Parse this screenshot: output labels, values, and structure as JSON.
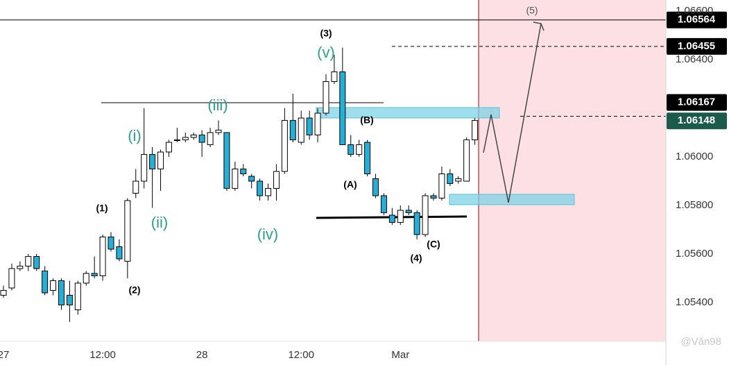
{
  "chart_data": {
    "type": "candlestick",
    "x": [
      0,
      1,
      2,
      3,
      4,
      5,
      6,
      7,
      8,
      9,
      10,
      11,
      12,
      13,
      14,
      15,
      16,
      17,
      18,
      19,
      20,
      21,
      22,
      23,
      24,
      25,
      26,
      27,
      28,
      29,
      30,
      31,
      32,
      33,
      34,
      35,
      36,
      37,
      38,
      39,
      40,
      41,
      42,
      43,
      44,
      45,
      46,
      47,
      48,
      49,
      50,
      51,
      52,
      53,
      54,
      55,
      56,
      57
    ],
    "open": [
      1.0543,
      1.0546,
      1.0554,
      1.0555,
      1.0559,
      1.0553,
      1.0545,
      1.0549,
      1.0543,
      1.0537,
      1.0548,
      1.0552,
      1.0551,
      1.0567,
      1.0563,
      1.0557,
      1.0585,
      1.059,
      1.0601,
      1.0595,
      1.0602,
      1.0607,
      1.0607,
      1.0608,
      1.0609,
      1.0605,
      1.061,
      1.061,
      1.0587,
      1.0595,
      1.0592,
      1.059,
      1.0584,
      1.0587,
      1.0594,
      1.0615,
      1.0606,
      1.0616,
      1.0609,
      1.0618,
      1.0631,
      1.0635,
      1.0605,
      1.0601,
      1.0606,
      1.0591,
      1.0584,
      1.0576,
      1.0573,
      1.0578,
      1.0577,
      1.0568,
      1.0584,
      1.0583,
      1.0593,
      1.059,
      1.059,
      1.0607
    ],
    "high": [
      1.0547,
      1.0556,
      1.0557,
      1.056,
      1.056,
      1.0555,
      1.055,
      1.055,
      1.0549,
      1.0549,
      1.0553,
      1.0559,
      1.0568,
      1.0569,
      1.0566,
      1.0583,
      1.0595,
      1.062,
      1.0604,
      1.0603,
      1.0607,
      1.0612,
      1.061,
      1.061,
      1.0611,
      1.0612,
      1.0615,
      1.061,
      1.0598,
      1.0597,
      1.0593,
      1.0591,
      1.0589,
      1.0597,
      1.062,
      1.0626,
      1.0619,
      1.0619,
      1.062,
      1.0634,
      1.0642,
      1.0645,
      1.0609,
      1.0607,
      1.0607,
      1.0593,
      1.0585,
      1.0579,
      1.058,
      1.058,
      1.0578,
      1.0585,
      1.0585,
      1.0596,
      1.0595,
      1.0592,
      1.0608,
      1.0616
    ],
    "low": [
      1.0542,
      1.0545,
      1.0553,
      1.0553,
      1.0553,
      1.0543,
      1.0543,
      1.0537,
      1.0532,
      1.0535,
      1.0547,
      1.055,
      1.0549,
      1.0561,
      1.0557,
      1.055,
      1.0583,
      1.0587,
      1.0579,
      1.0586,
      1.06,
      1.0606,
      1.0606,
      1.0607,
      1.06,
      1.0604,
      1.0609,
      1.0586,
      1.0586,
      1.0592,
      1.0587,
      1.0582,
      1.0582,
      1.0582,
      1.0593,
      1.0606,
      1.0605,
      1.0607,
      1.0606,
      1.0617,
      1.063,
      1.0605,
      1.06,
      1.06,
      1.0592,
      1.0583,
      1.0576,
      1.0572,
      1.0572,
      1.0576,
      1.0566,
      1.0567,
      1.0582,
      1.0582,
      1.0588,
      1.0589,
      1.059,
      1.0605
    ],
    "close": [
      1.0545,
      1.0554,
      1.0555,
      1.0559,
      1.0554,
      1.0544,
      1.0549,
      1.0539,
      1.0539,
      1.0548,
      1.0552,
      1.0551,
      1.0567,
      1.0562,
      1.0558,
      1.0582,
      1.059,
      1.0601,
      1.0595,
      1.0602,
      1.0606,
      1.0607,
      1.0608,
      1.0609,
      1.0606,
      1.061,
      1.0611,
      1.0587,
      1.0595,
      1.0593,
      1.059,
      1.0584,
      1.0587,
      1.0594,
      1.0615,
      1.0607,
      1.0616,
      1.0609,
      1.0618,
      1.0631,
      1.0635,
      1.0605,
      1.0601,
      1.0605,
      1.0593,
      1.0584,
      1.0577,
      1.0573,
      1.0578,
      1.0577,
      1.0568,
      1.0584,
      1.0583,
      1.0593,
      1.0589,
      1.0591,
      1.0607,
      1.0615
    ],
    "up_color": "#ffffff",
    "down_color": "#26afd6",
    "xlim": [
      -0.42,
      80.1
    ],
    "xticks": [
      {
        "value": 0,
        "label": "27"
      },
      {
        "value": 12,
        "label": "12:00"
      },
      {
        "value": 24,
        "label": "28"
      },
      {
        "value": 36,
        "label": "12:00"
      },
      {
        "value": 48,
        "label": "Mar"
      }
    ],
    "ylim": [
      1.0524,
      1.06646
    ],
    "yticks": [
      {
        "value": 1.054,
        "label": "1.05400"
      },
      {
        "value": 1.056,
        "label": "1.05600"
      },
      {
        "value": 1.058,
        "label": "1.05800"
      },
      {
        "value": 1.06,
        "label": "1.06000"
      },
      {
        "value": 1.064,
        "label": "1.06400"
      },
      {
        "value": 1.066,
        "label": "1.06600"
      }
    ],
    "price_levels": [
      {
        "value": 1.06564,
        "dashed": false
      },
      {
        "value": 1.06455,
        "dashed": true
      },
      {
        "value": 1.06167,
        "dashed": true
      }
    ],
    "last_price": 1.06148,
    "last_price_color": "#1c5b4c",
    "wave_labels": [
      "(3)",
      "(v)",
      "(iii)",
      "(i)",
      "(ii)",
      "(iv)",
      "(1)",
      "(2)",
      "(A)",
      "(B)",
      "(C)",
      "(4)",
      "(5)"
    ],
    "watermark": "@Văn98"
  }
}
